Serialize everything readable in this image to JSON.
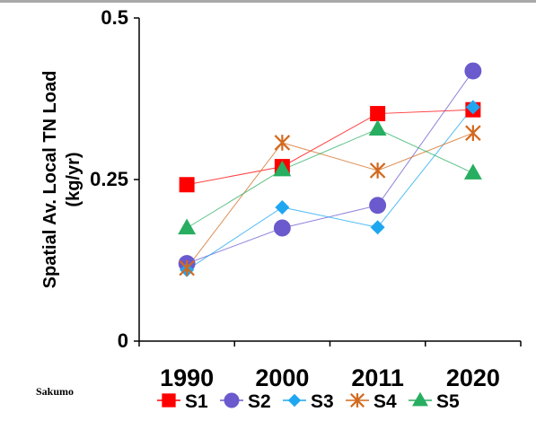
{
  "caption": "Sakumo",
  "chart_data": {
    "type": "line",
    "title": "",
    "xlabel": "",
    "ylabel_lines": [
      "Spatial Av. Local TN Load",
      "(kg/yr)"
    ],
    "categories": [
      "1990",
      "2000",
      "2011",
      "2020"
    ],
    "ylim": [
      0,
      0.5
    ],
    "yticks": [
      0,
      0.25,
      0.5
    ],
    "ytick_labels": [
      "0",
      "0.25",
      "0.5"
    ],
    "grid": false,
    "legend_position": "bottom",
    "series": [
      {
        "name": "S1",
        "values": [
          0.242,
          0.27,
          0.352,
          0.358
        ],
        "color": "#ff0000",
        "marker": "square"
      },
      {
        "name": "S2",
        "values": [
          0.12,
          0.175,
          0.21,
          0.418
        ],
        "color": "#6a5acd",
        "marker": "circle"
      },
      {
        "name": "S3",
        "values": [
          0.11,
          0.207,
          0.176,
          0.362
        ],
        "color": "#1ea7f0",
        "marker": "diamond"
      },
      {
        "name": "S4",
        "values": [
          0.113,
          0.307,
          0.264,
          0.322
        ],
        "color": "#d2691e",
        "marker": "asterisk"
      },
      {
        "name": "S5",
        "values": [
          0.175,
          0.265,
          0.328,
          0.26
        ],
        "color": "#27ae60",
        "marker": "triangle"
      }
    ]
  }
}
